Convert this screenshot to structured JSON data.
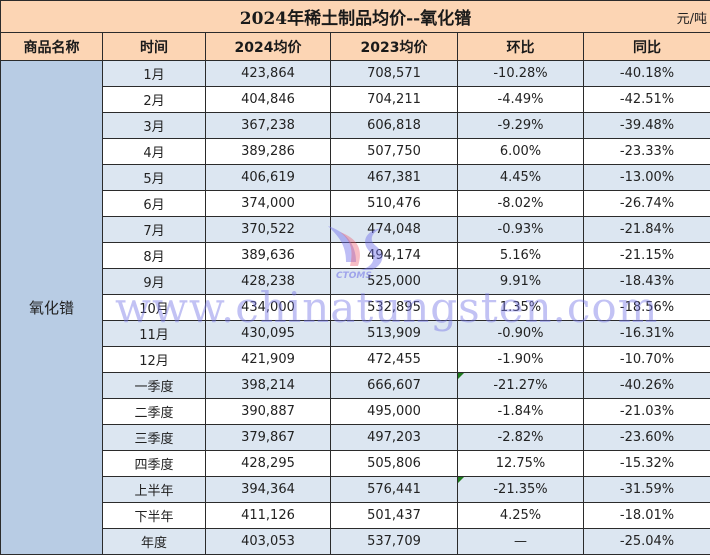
{
  "title": "2024年稀土制品均价--氧化镨",
  "unit": "元/吨",
  "columns": [
    "商品名称",
    "时间",
    "2024均价",
    "2023均价",
    "环比",
    "同比"
  ],
  "product": "氧化镨",
  "colors": {
    "header_bg": "#fcd5b4",
    "row_alt_bg": "#dce6f1",
    "product_bg": "#b8cce4",
    "positive": "#e0202e",
    "negative": "#1ea86a"
  },
  "rows": [
    {
      "period": "1月",
      "avg2024": "423,864",
      "avg2023": "708,571",
      "mom": "-10.28%",
      "yoy": "-40.18%"
    },
    {
      "period": "2月",
      "avg2024": "404,846",
      "avg2023": "704,211",
      "mom": "-4.49%",
      "yoy": "-42.51%"
    },
    {
      "period": "3月",
      "avg2024": "367,238",
      "avg2023": "606,818",
      "mom": "-9.29%",
      "yoy": "-39.48%"
    },
    {
      "period": "4月",
      "avg2024": "389,286",
      "avg2023": "507,750",
      "mom": "6.00%",
      "yoy": "-23.33%"
    },
    {
      "period": "5月",
      "avg2024": "406,619",
      "avg2023": "467,381",
      "mom": "4.45%",
      "yoy": "-13.00%"
    },
    {
      "period": "6月",
      "avg2024": "374,000",
      "avg2023": "510,476",
      "mom": "-8.02%",
      "yoy": "-26.74%"
    },
    {
      "period": "7月",
      "avg2024": "370,522",
      "avg2023": "474,048",
      "mom": "-0.93%",
      "yoy": "-21.84%"
    },
    {
      "period": "8月",
      "avg2024": "389,636",
      "avg2023": "494,174",
      "mom": "5.16%",
      "yoy": "-21.15%"
    },
    {
      "period": "9月",
      "avg2024": "428,238",
      "avg2023": "525,000",
      "mom": "9.91%",
      "yoy": "-18.43%"
    },
    {
      "period": "10月",
      "avg2024": "434,000",
      "avg2023": "532,895",
      "mom": "1.35%",
      "yoy": "-18.56%"
    },
    {
      "period": "11月",
      "avg2024": "430,095",
      "avg2023": "513,909",
      "mom": "-0.90%",
      "yoy": "-16.31%"
    },
    {
      "period": "12月",
      "avg2024": "421,909",
      "avg2023": "472,455",
      "mom": "-1.90%",
      "yoy": "-10.70%"
    },
    {
      "period": "一季度",
      "avg2024": "398,214",
      "avg2023": "666,607",
      "mom": "-21.27%",
      "yoy": "-40.26%"
    },
    {
      "period": "二季度",
      "avg2024": "390,887",
      "avg2023": "495,000",
      "mom": "-1.84%",
      "yoy": "-21.03%"
    },
    {
      "period": "三季度",
      "avg2024": "379,867",
      "avg2023": "497,203",
      "mom": "-2.82%",
      "yoy": "-23.60%"
    },
    {
      "period": "四季度",
      "avg2024": "428,295",
      "avg2023": "505,806",
      "mom": "12.75%",
      "yoy": "-15.32%"
    },
    {
      "period": "上半年",
      "avg2024": "394,364",
      "avg2023": "576,441",
      "mom": "-21.35%",
      "yoy": "-31.59%"
    },
    {
      "period": "下半年",
      "avg2024": "411,126",
      "avg2023": "501,437",
      "mom": "4.25%",
      "yoy": "-18.01%"
    },
    {
      "period": "年度",
      "avg2024": "403,053",
      "avg2023": "537,709",
      "mom": "—",
      "yoy": "-25.04%"
    }
  ],
  "watermark": {
    "url_text": "www.chinatungsten.com",
    "logo_text": "CTOMS"
  }
}
